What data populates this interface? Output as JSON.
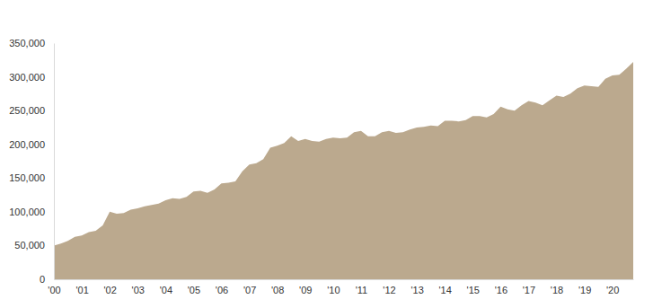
{
  "chart_data": {
    "type": "area",
    "color": "#bba98e",
    "grid": false,
    "x": [
      2000,
      2000.25,
      2000.5,
      2000.75,
      2001,
      2001.25,
      2001.5,
      2001.75,
      2002,
      2002.25,
      2002.5,
      2002.75,
      2003,
      2003.25,
      2003.5,
      2003.75,
      2004,
      2004.25,
      2004.5,
      2004.75,
      2005,
      2005.25,
      2005.5,
      2005.75,
      2006,
      2006.25,
      2006.5,
      2006.75,
      2007,
      2007.25,
      2007.5,
      2007.75,
      2008,
      2008.25,
      2008.5,
      2008.75,
      2009,
      2009.25,
      2009.5,
      2009.75,
      2010,
      2010.25,
      2010.5,
      2010.75,
      2011,
      2011.25,
      2011.5,
      2011.75,
      2012,
      2012.25,
      2012.5,
      2012.75,
      2013,
      2013.25,
      2013.5,
      2013.75,
      2014,
      2014.25,
      2014.5,
      2014.75,
      2015,
      2015.25,
      2015.5,
      2015.75,
      2016,
      2016.25,
      2016.5,
      2016.75,
      2017,
      2017.25,
      2017.5,
      2017.75,
      2018,
      2018.25,
      2018.5,
      2018.75,
      2019,
      2019.25,
      2019.5,
      2019.75,
      2020,
      2020.25,
      2020.5,
      2020.75
    ],
    "values": [
      50000,
      53000,
      57000,
      63000,
      65000,
      70000,
      72000,
      80000,
      100000,
      97000,
      98000,
      103000,
      105000,
      108000,
      110000,
      112000,
      117000,
      120000,
      119000,
      122000,
      130000,
      131000,
      128000,
      133000,
      142000,
      143000,
      145000,
      160000,
      170000,
      172000,
      178000,
      195000,
      198000,
      202000,
      212000,
      205000,
      208000,
      205000,
      204000,
      208000,
      210000,
      209000,
      210000,
      218000,
      220000,
      212000,
      212000,
      218000,
      220000,
      217000,
      218000,
      222000,
      225000,
      226000,
      228000,
      227000,
      235000,
      235000,
      234000,
      236000,
      242000,
      242000,
      240000,
      245000,
      256000,
      252000,
      250000,
      258000,
      264000,
      262000,
      258000,
      265000,
      272000,
      270000,
      275000,
      283000,
      287000,
      286000,
      285000,
      297000,
      302000,
      303000,
      312000,
      322000
    ],
    "xlim": [
      2000,
      2020.75
    ],
    "xticks": [
      {
        "value": 2000,
        "label": "'00"
      },
      {
        "value": 2001,
        "label": "'01"
      },
      {
        "value": 2002,
        "label": "'02"
      },
      {
        "value": 2003,
        "label": "'03"
      },
      {
        "value": 2004,
        "label": "'04"
      },
      {
        "value": 2005,
        "label": "'05"
      },
      {
        "value": 2006,
        "label": "'06"
      },
      {
        "value": 2007,
        "label": "'07"
      },
      {
        "value": 2008,
        "label": "'08"
      },
      {
        "value": 2009,
        "label": "'09"
      },
      {
        "value": 2010,
        "label": "'10"
      },
      {
        "value": 2011,
        "label": "'11"
      },
      {
        "value": 2012,
        "label": "'12"
      },
      {
        "value": 2013,
        "label": "'13"
      },
      {
        "value": 2014,
        "label": "'14"
      },
      {
        "value": 2015,
        "label": "'15"
      },
      {
        "value": 2016,
        "label": "'16"
      },
      {
        "value": 2017,
        "label": "'17"
      },
      {
        "value": 2018,
        "label": "'18"
      },
      {
        "value": 2019,
        "label": "'19"
      },
      {
        "value": 2020,
        "label": "'20"
      }
    ],
    "ylim": [
      0,
      350000
    ],
    "yticks": [
      0,
      {
        "value": 50000,
        "label": "50,000"
      },
      {
        "value": 100000,
        "label": "100,000"
      },
      {
        "value": 150000,
        "label": "150,000"
      },
      {
        "value": 200000,
        "label": "200,000"
      },
      {
        "value": 250000,
        "label": "250,000"
      },
      {
        "value": 300000,
        "label": "300,000"
      },
      {
        "value": 350000,
        "label": "350,000"
      }
    ]
  }
}
